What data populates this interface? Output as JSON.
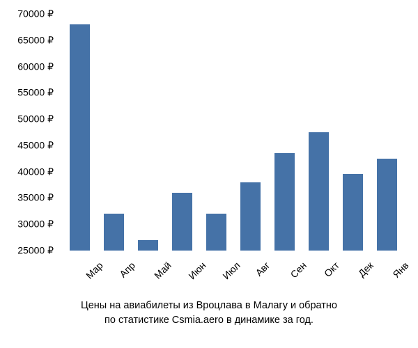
{
  "chart": {
    "type": "bar",
    "categories": [
      "Мар",
      "Апр",
      "Май",
      "Июн",
      "Июл",
      "Авг",
      "Сен",
      "Окт",
      "Дек",
      "Янв"
    ],
    "values": [
      68000,
      32000,
      27000,
      36000,
      32000,
      38000,
      43500,
      47500,
      39500,
      42500
    ],
    "bar_color": "#4572a7",
    "y_min": 25000,
    "y_max": 70000,
    "y_tick_step": 5000,
    "y_ticks": [
      25000,
      30000,
      35000,
      40000,
      45000,
      50000,
      55000,
      60000,
      65000,
      70000
    ],
    "y_tick_labels": [
      "25000 ₽",
      "30000 ₽",
      "35000 ₽",
      "40000 ₽",
      "45000 ₽",
      "50000 ₽",
      "55000 ₽",
      "60000 ₽",
      "65000 ₽",
      "70000 ₽"
    ],
    "currency_symbol": "₽",
    "background_color": "#ffffff",
    "text_color": "#000000",
    "label_fontsize": 14,
    "caption_fontsize": 14.5,
    "bar_width_ratio": 0.6,
    "x_label_rotation": -45
  },
  "caption": {
    "line1": "Цены на авиабилеты из Вроцлава в Малагу и обратно",
    "line2": "по статистике Csmia.aero в динамике за год."
  }
}
